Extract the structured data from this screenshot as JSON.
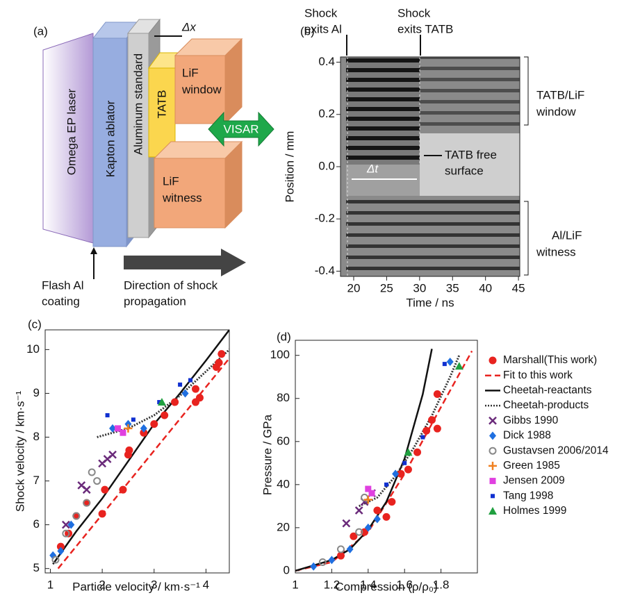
{
  "diagram": {
    "panel_label": "(a)",
    "laser": "Omega EP laser",
    "ablator": "Kapton ablator",
    "standard": "Aluminum standard",
    "tatb": "TATB",
    "dx": "Δx",
    "window": [
      "LiF",
      "window"
    ],
    "witness": [
      "LiF",
      "witness"
    ],
    "visar": "VISAR",
    "coating": [
      "Flash Al",
      "coating"
    ],
    "direction": [
      "Direction of shock",
      "propagation"
    ]
  },
  "chart_data": [
    {
      "type": "image",
      "panel_label": "(b)",
      "xlabel": "Time / ns",
      "ylabel": "Position / mm",
      "xlim": [
        18,
        45.2
      ],
      "xticks": [
        20,
        25,
        30,
        35,
        40,
        45
      ],
      "ylim": [
        -0.42,
        0.42
      ],
      "yticks": [
        0.4,
        0.2,
        {
          "value": 0,
          "label": "0.0"
        },
        -0.2,
        -0.4
      ],
      "annotations": [
        "Shock",
        "exits Al",
        "Shock",
        "exits TATB",
        "TATB/LiF",
        "window",
        "TATB free",
        "surface",
        "Δt",
        "Al/LiF",
        "witness"
      ]
    },
    {
      "type": "scatter",
      "panel_label": "(c)",
      "xlabel": "Particle velocity / km·s⁻¹",
      "ylabel": "Shock velocity / km·s⁻¹",
      "xlim": [
        0.9,
        4.45
      ],
      "xticks": [
        1,
        2,
        3,
        4
      ],
      "ylim": [
        4.9,
        10.45
      ],
      "yticks": [
        5,
        6,
        7,
        8,
        9,
        10
      ],
      "series": [
        {
          "color": "#e8231f",
          "marker": "circle",
          "x": [
            1.2,
            1.35,
            1.5,
            1.7,
            2.0,
            2.05,
            2.4,
            2.5,
            2.52,
            2.8,
            3.0,
            3.2,
            3.4,
            3.8,
            3.88,
            3.8,
            4.2,
            4.3,
            4.25
          ],
          "values": [
            5.5,
            5.8,
            6.2,
            6.5,
            6.25,
            6.8,
            6.8,
            7.6,
            7.7,
            8.1,
            8.3,
            8.5,
            8.8,
            8.8,
            8.9,
            9.1,
            9.6,
            9.9,
            9.7
          ]
        },
        {
          "color": "#e8231f",
          "style": "dashed",
          "x": [
            1.15,
            4.45
          ],
          "values": [
            5.0,
            9.8
          ]
        },
        {
          "color": "#111111",
          "style": "solid",
          "x": [
            1.05,
            1.5,
            2,
            2.5,
            3,
            3.5,
            4,
            4.45
          ],
          "values": [
            5.1,
            5.85,
            6.6,
            7.45,
            8.3,
            9.0,
            9.75,
            10.45
          ]
        },
        {
          "color": "#333333",
          "style": "dotted",
          "x": [
            1.9,
            2.5,
            3,
            3.5,
            4,
            4.45
          ],
          "values": [
            8.0,
            8.2,
            8.5,
            8.95,
            9.5,
            10.0
          ]
        },
        {
          "color": "#6a2a7a",
          "marker": "cross",
          "x": [
            1.3,
            1.6,
            1.7,
            2.0,
            2.1,
            2.2
          ],
          "values": [
            6.0,
            6.9,
            6.8,
            7.4,
            7.5,
            7.6
          ]
        },
        {
          "color": "#1f6fe0",
          "marker": "diamond",
          "x": [
            1.05,
            1.2,
            1.4,
            2.2,
            2.5,
            2.8,
            3.6
          ],
          "values": [
            5.3,
            5.4,
            6.0,
            8.2,
            8.3,
            8.2,
            9.0
          ]
        },
        {
          "color": "#888888",
          "marker": "ocircle",
          "x": [
            1.1,
            1.3,
            1.5,
            1.7,
            1.8,
            1.9
          ],
          "values": [
            5.2,
            5.8,
            6.2,
            6.5,
            7.2,
            7.0
          ]
        },
        {
          "color": "#f08020",
          "marker": "plus",
          "x": [
            2.5
          ],
          "values": [
            8.2
          ]
        },
        {
          "color": "#e040e0",
          "marker": "square",
          "x": [
            2.3,
            2.4
          ],
          "values": [
            8.2,
            8.1
          ]
        },
        {
          "color": "#1030d0",
          "marker": "smallsquare",
          "x": [
            2.1,
            2.6,
            3.1,
            3.5,
            3.7
          ],
          "values": [
            8.5,
            8.4,
            8.8,
            9.2,
            9.3
          ]
        },
        {
          "color": "#20a040",
          "marker": "triangle",
          "x": [
            3.15
          ],
          "values": [
            8.8
          ]
        }
      ]
    },
    {
      "type": "scatter",
      "panel_label": "(d)",
      "xlabel": "Compression (ρ/ρ₀)",
      "ylabel": "Pressure / GPa",
      "xlim": [
        1,
        2
      ],
      "xticks": [
        1,
        1.2,
        1.4,
        1.6,
        1.8
      ],
      "ylim": [
        -1,
        107
      ],
      "yticks": [
        0,
        20,
        40,
        60,
        80,
        100
      ],
      "series": [
        {
          "name": "Marshall(This work)",
          "color": "#e8231f",
          "marker": "circle",
          "x": [
            1.25,
            1.32,
            1.38,
            1.45,
            1.5,
            1.53,
            1.58,
            1.62,
            1.67,
            1.72,
            1.78,
            1.78,
            1.75
          ],
          "values": [
            7,
            16,
            18,
            28,
            25,
            32,
            45,
            47,
            55,
            65,
            66,
            82,
            70
          ]
        },
        {
          "name": "Fit to this work",
          "color": "#e8231f",
          "style": "dashed",
          "x": [
            1,
            1.2,
            1.4,
            1.6,
            1.8,
            1.97
          ],
          "values": [
            0,
            4,
            18,
            45,
            76,
            102
          ]
        },
        {
          "name": "Cheetah-reactants",
          "color": "#111111",
          "style": "solid",
          "x": [
            1,
            1.2,
            1.3,
            1.4,
            1.5,
            1.6,
            1.7,
            1.75
          ],
          "values": [
            0,
            5,
            10,
            19,
            32,
            52,
            82,
            103
          ]
        },
        {
          "name": "Cheetah-products",
          "color": "#333333",
          "style": "dotted",
          "x": [
            1.35,
            1.45,
            1.55,
            1.65,
            1.75,
            1.85,
            1.9
          ],
          "values": [
            30,
            34,
            44,
            57,
            72,
            90,
            100
          ]
        },
        {
          "name": "Gibbs 1990",
          "color": "#6a2a7a",
          "marker": "cross",
          "x": [
            1.28,
            1.35,
            1.38,
            1.42
          ],
          "values": [
            22,
            28,
            32,
            36
          ]
        },
        {
          "name": "Dick 1988",
          "color": "#1f6fe0",
          "marker": "diamond",
          "x": [
            1.1,
            1.2,
            1.3,
            1.4,
            1.45,
            1.55,
            1.85
          ],
          "values": [
            2,
            5,
            10,
            20,
            24,
            45,
            97
          ]
        },
        {
          "name": "Gustavsen 2006/2014",
          "color": "#888888",
          "marker": "ocircle",
          "x": [
            1.15,
            1.25,
            1.35,
            1.38
          ],
          "values": [
            4,
            10,
            18,
            34
          ]
        },
        {
          "name": "Green 1985",
          "color": "#f08020",
          "marker": "plus",
          "x": [
            1.4
          ],
          "values": [
            33
          ]
        },
        {
          "name": "Jensen 2009",
          "color": "#e040e0",
          "marker": "square",
          "x": [
            1.4,
            1.42
          ],
          "values": [
            38,
            36
          ]
        },
        {
          "name": "Tang 1998",
          "color": "#1030d0",
          "marker": "smallsquare",
          "x": [
            1.5,
            1.6,
            1.7,
            1.82
          ],
          "values": [
            40,
            50,
            62,
            96
          ]
        },
        {
          "name": "Holmes 1999",
          "color": "#20a040",
          "marker": "triangle",
          "x": [
            1.62,
            1.9
          ],
          "values": [
            55,
            95
          ]
        }
      ]
    }
  ]
}
